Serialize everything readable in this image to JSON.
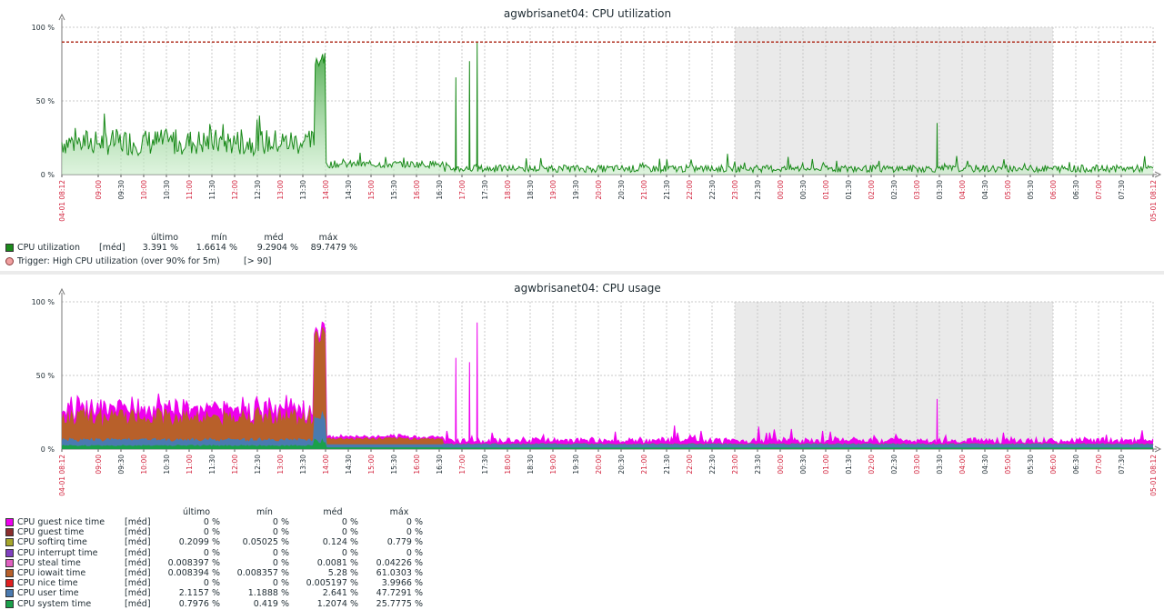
{
  "colors": {
    "red_tick": "#d2223c",
    "black_tick": "#1f2c33",
    "grid": "#c8c8c8",
    "night": "#eaeaea",
    "trigger": "#b03020"
  },
  "time_ticks": [
    "04-01 08:12",
    "09:00",
    "09:30",
    "10:00",
    "10:30",
    "11:00",
    "11:30",
    "12:00",
    "12:30",
    "13:00",
    "13:30",
    "14:00",
    "14:30",
    "15:00",
    "15:30",
    "16:00",
    "16:30",
    "17:00",
    "17:30",
    "18:00",
    "18:30",
    "19:00",
    "19:30",
    "20:00",
    "20:30",
    "21:00",
    "21:30",
    "22:00",
    "22:30",
    "23:00",
    "23:30",
    "00:00",
    "00:30",
    "01:00",
    "01:30",
    "02:00",
    "02:30",
    "03:00",
    "03:30",
    "04:00",
    "04:30",
    "05:00",
    "05:30",
    "06:00",
    "06:30",
    "07:00",
    "07:30",
    "05-01 08:12"
  ],
  "legend_headers": {
    "last": "último",
    "min": "mín",
    "avg": "méd",
    "max": "máx"
  },
  "chart_data": [
    {
      "type": "area",
      "title": "agwbrisanet04: CPU utilization",
      "yticks": [
        "0 %",
        "50 %",
        "100 %"
      ],
      "ylim": [
        0,
        100
      ],
      "x_range": [
        "04-01 08:12",
        "05-01 08:12"
      ],
      "shaded_period": [
        "23:00",
        "06:00"
      ],
      "grid": true,
      "series": [
        {
          "name": "CPU utilization",
          "func": "[méd]",
          "last": "3.391 %",
          "min": "1.6614 %",
          "avg": "9.2904 %",
          "max": "89.7479 %",
          "color": "#1a8a1a",
          "profile": [
            {
              "from": "08:12",
              "to": "13:45",
              "level": 22
            },
            {
              "from": "13:45",
              "to": "14:00",
              "level": 78
            },
            {
              "from": "14:00",
              "to": "16:35",
              "level": 7
            },
            {
              "from": "16:35",
              "to": "08:12",
              "level": 4
            }
          ],
          "spikes": [
            [
              "16:52",
              66
            ],
            [
              "17:10",
              77
            ],
            [
              "17:20",
              89.7
            ],
            [
              "03:27",
              35
            ]
          ]
        }
      ],
      "trigger": {
        "label": "Trigger: High CPU utilization (over 90% for 5m)",
        "condition": "[> 90]",
        "value": 90
      }
    },
    {
      "type": "area",
      "title": "agwbrisanet04: CPU usage",
      "yticks": [
        "0 %",
        "50 %",
        "100 %"
      ],
      "ylim": [
        0,
        100
      ],
      "x_range": [
        "04-01 08:12",
        "05-01 08:12"
      ],
      "shaded_period": [
        "23:00",
        "06:00"
      ],
      "grid": true,
      "series": [
        {
          "name": "CPU guest nice time",
          "func": "[méd]",
          "last": "0 %",
          "min": "0 %",
          "avg": "0 %",
          "max": "0 %",
          "color": "#ee00ee"
        },
        {
          "name": "CPU guest time",
          "func": "[méd]",
          "last": "0 %",
          "min": "0 %",
          "avg": "0 %",
          "max": "0 %",
          "color": "#8b2d2d"
        },
        {
          "name": "CPU softirq time",
          "func": "[méd]",
          "last": "0.2099 %",
          "min": "0.05025 %",
          "avg": "0.124 %",
          "max": "0.779 %",
          "color": "#a6a62a"
        },
        {
          "name": "CPU interrupt time",
          "func": "[méd]",
          "last": "0 %",
          "min": "0 %",
          "avg": "0 %",
          "max": "0 %",
          "color": "#8040c0"
        },
        {
          "name": "CPU steal time",
          "func": "[méd]",
          "last": "0.008397 %",
          "min": "0 %",
          "avg": "0.0081 %",
          "max": "0.04226 %",
          "color": "#e060c0"
        },
        {
          "name": "CPU iowait time",
          "func": "[méd]",
          "last": "0.008394 %",
          "min": "0.008357 %",
          "avg": "5.28 %",
          "max": "61.0303 %",
          "color": "#b8602a"
        },
        {
          "name": "CPU nice time",
          "func": "[méd]",
          "last": "0 %",
          "min": "0 %",
          "avg": "0.005197 %",
          "max": "3.9966 %",
          "color": "#e02020"
        },
        {
          "name": "CPU user time",
          "func": "[méd]",
          "last": "2.1157 %",
          "min": "1.1888 %",
          "avg": "2.641 %",
          "max": "47.7291 %",
          "color": "#4a7ab0"
        },
        {
          "name": "CPU system time",
          "func": "[méd]",
          "last": "0.7976 %",
          "min": "0.419 %",
          "avg": "1.2074 %",
          "max": "25.7775 %",
          "color": "#1aa04a"
        }
      ]
    }
  ]
}
